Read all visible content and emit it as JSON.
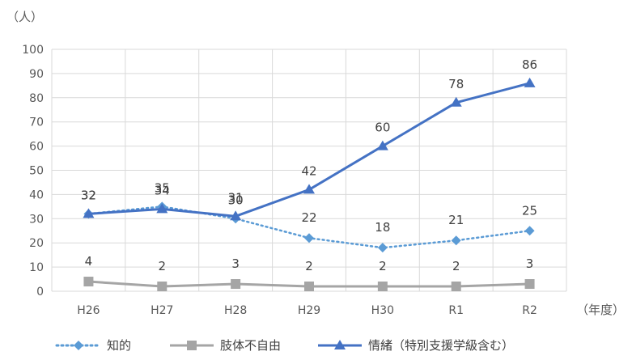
{
  "chart_data": {
    "type": "line",
    "y_unit_label": "（人）",
    "x_unit_label": "（年度）",
    "categories": [
      "H26",
      "H27",
      "H28",
      "H29",
      "H30",
      "R1",
      "R2"
    ],
    "ylim": [
      0,
      100
    ],
    "yticks": [
      0,
      10,
      20,
      30,
      40,
      50,
      60,
      70,
      80,
      90,
      100
    ],
    "grid": true,
    "legend_position": "bottom",
    "series": [
      {
        "name": "知的",
        "values": [
          32,
          35,
          30,
          22,
          18,
          21,
          25
        ],
        "color": "#5b9bd5",
        "line_style": "dotted",
        "marker": "diamond"
      },
      {
        "name": "肢体不自由",
        "values": [
          4,
          2,
          3,
          2,
          2,
          2,
          3
        ],
        "color": "#a5a5a5",
        "line_style": "solid",
        "marker": "square"
      },
      {
        "name": "情緒（特別支援学級含む）",
        "values": [
          32,
          34,
          31,
          42,
          60,
          78,
          86
        ],
        "color": "#4472c4",
        "line_style": "solid",
        "marker": "triangle"
      }
    ]
  }
}
